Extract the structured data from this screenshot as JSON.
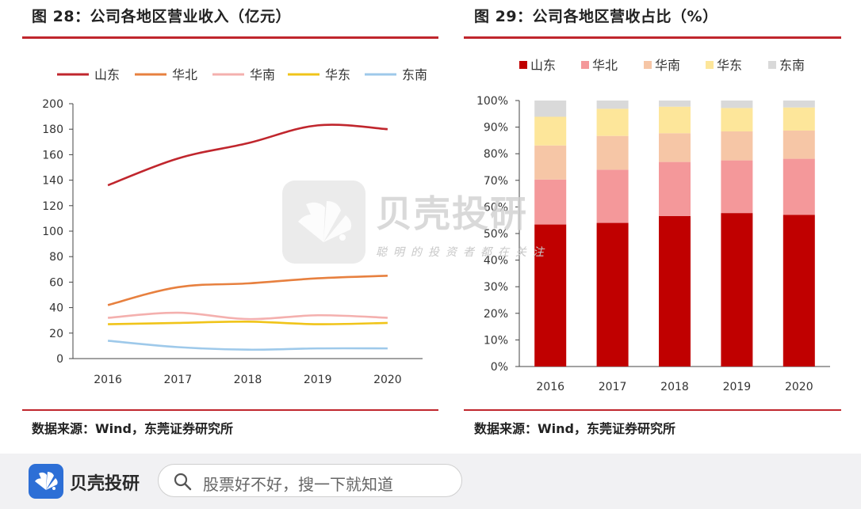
{
  "left_panel": {
    "title": "图 28：公司各地区营业收入（亿元）",
    "source": "数据来源：Wind，东莞证券研究所"
  },
  "right_panel": {
    "title": "图 29：公司各地区营收占比（%）",
    "source": "数据来源：Wind，东莞证券研究所"
  },
  "watermark": {
    "title": "贝壳投研",
    "slogan": "聪明的投资者都在关注"
  },
  "footer": {
    "brand": "贝壳投研",
    "search_placeholder": "股票好不好，搜一下就知道",
    "icons": [
      "brand-logo-icon",
      "search-icon"
    ],
    "background": "#f1f1f3"
  },
  "colors": {
    "accent_rule": "#c0262d",
    "series": {
      "山东": "#c0262d",
      "华北": "#e7803f",
      "华南": "#f4b0ae",
      "华东": "#f0c419",
      "东南": "#9ec9ea"
    },
    "stack": {
      "山东": "#c00000",
      "华北": "#f4989a",
      "华南": "#f6c6a6",
      "华东": "#fde69a",
      "东南": "#d9d9d9"
    }
  },
  "chart_data": [
    {
      "type": "line",
      "x": [
        "2016",
        "2017",
        "2018",
        "2019",
        "2020"
      ],
      "ylim": [
        0,
        200
      ],
      "yticks": [
        0,
        20,
        40,
        60,
        80,
        100,
        120,
        140,
        160,
        180,
        200
      ],
      "legend_position": "top",
      "series": [
        {
          "name": "山东",
          "values": [
            136,
            157,
            169,
            183,
            180
          ]
        },
        {
          "name": "华北",
          "values": [
            42,
            56,
            59,
            63,
            65
          ]
        },
        {
          "name": "华南",
          "values": [
            32,
            36,
            31,
            34,
            32
          ]
        },
        {
          "name": "华东",
          "values": [
            27,
            28,
            29,
            27,
            28
          ]
        },
        {
          "name": "东南",
          "values": [
            14,
            9,
            7,
            8,
            8
          ]
        }
      ]
    },
    {
      "type": "bar",
      "stacked": true,
      "categories": [
        "2016",
        "2017",
        "2018",
        "2019",
        "2020"
      ],
      "ylim": [
        0,
        100
      ],
      "yticks": [
        "0%",
        "10%",
        "20%",
        "30%",
        "40%",
        "50%",
        "60%",
        "70%",
        "80%",
        "90%",
        "100%"
      ],
      "legend_position": "top",
      "series": [
        {
          "name": "山东",
          "values": [
            53.4,
            54.0,
            56.6,
            57.7,
            57.0
          ]
        },
        {
          "name": "华北",
          "values": [
            16.9,
            20.0,
            20.3,
            19.8,
            21.1
          ]
        },
        {
          "name": "华南",
          "values": [
            12.8,
            12.7,
            10.8,
            10.9,
            10.6
          ]
        },
        {
          "name": "华东",
          "values": [
            10.8,
            10.2,
            10.0,
            8.8,
            8.7
          ]
        },
        {
          "name": "东南",
          "values": [
            6.1,
            3.1,
            2.3,
            2.8,
            2.6
          ]
        }
      ]
    }
  ]
}
